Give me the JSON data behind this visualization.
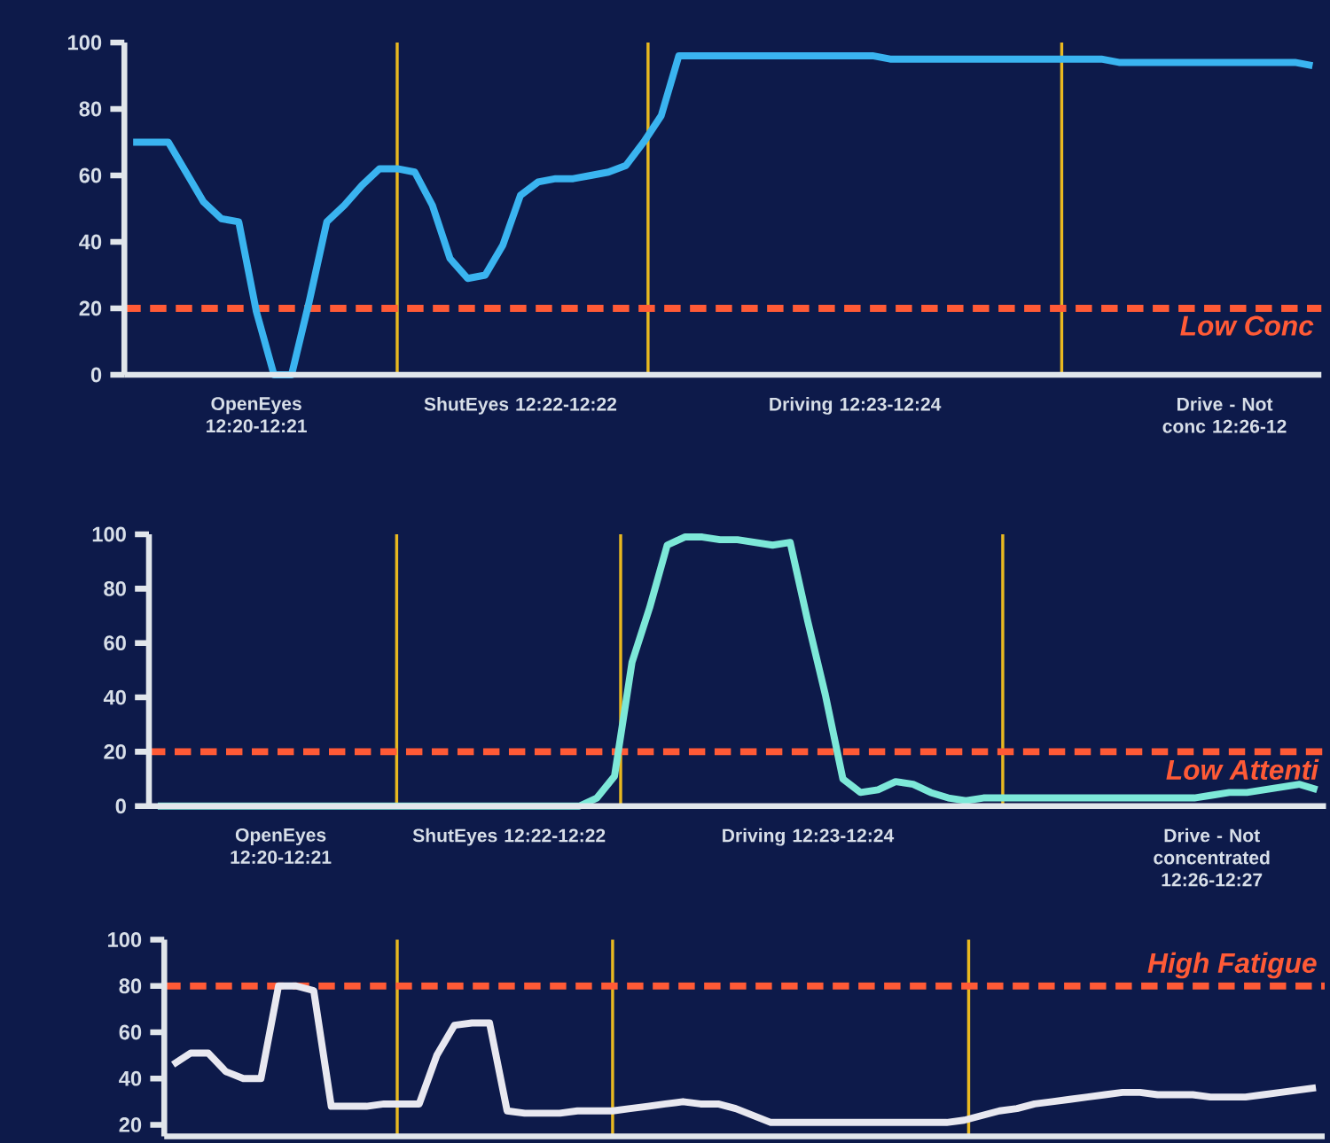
{
  "chart_data": [
    {
      "type": "line",
      "ylim": [
        0,
        100
      ],
      "yticks": [
        0,
        20,
        40,
        60,
        80,
        100
      ],
      "categories": [
        null,
        null,
        null,
        null,
        null,
        null,
        null,
        "OpenEyes 12:20-12:21",
        null,
        null,
        null,
        null,
        null,
        null,
        null,
        null,
        null,
        null,
        null,
        null,
        null,
        null,
        "ShutEyes 12:22-12:22",
        null,
        null,
        null,
        null,
        null,
        null,
        null,
        null,
        null,
        null,
        null,
        null,
        null,
        null,
        null,
        null,
        null,
        null,
        "Driving 12:23-12:24",
        null,
        null,
        null,
        null,
        null,
        null,
        null,
        null,
        null,
        null,
        null,
        null,
        null,
        null,
        null,
        null,
        null,
        null,
        null,
        null,
        "Drive - Not conc 12:26-12",
        null,
        null,
        null,
        null,
        null
      ],
      "ref_lines": [
        {
          "axis": "y",
          "value": 20,
          "label": "Low Conc",
          "color": "#ff5a36",
          "line_style": "dashed"
        }
      ],
      "line_style": "solid",
      "series": [
        {
          "color": "#3ab4f0",
          "values": [
            70,
            70,
            70,
            61,
            52,
            47,
            46,
            19,
            0,
            0,
            22,
            46,
            51,
            57,
            62,
            62,
            61,
            51,
            35,
            29,
            30,
            39,
            54,
            58,
            59,
            59,
            60,
            61,
            63,
            70,
            78,
            96,
            96,
            96,
            96,
            96,
            96,
            96,
            96,
            96,
            96,
            96,
            96,
            95,
            95,
            95,
            95,
            95,
            95,
            95,
            95,
            95,
            95,
            95,
            95,
            95,
            94,
            94,
            94,
            94,
            94,
            94,
            94,
            94,
            94,
            94,
            94,
            93
          ]
        }
      ]
    },
    {
      "type": "line",
      "ylim": [
        0,
        100
      ],
      "yticks": [
        0,
        20,
        40,
        60,
        80,
        100
      ],
      "categories": [
        null,
        null,
        null,
        null,
        null,
        null,
        null,
        "OpenEyes 12:20-12:21",
        null,
        null,
        null,
        null,
        null,
        null,
        null,
        null,
        null,
        null,
        null,
        null,
        "ShutEyes 12:22-12:22",
        null,
        null,
        null,
        null,
        null,
        null,
        null,
        null,
        null,
        null,
        null,
        null,
        null,
        null,
        null,
        null,
        "Driving 12:23-12:24",
        null,
        null,
        null,
        null,
        null,
        null,
        null,
        null,
        null,
        null,
        null,
        null,
        null,
        null,
        null,
        null,
        null,
        null,
        null,
        null,
        null,
        null,
        "Drive - Not concentrated 12:26-12:27",
        null,
        null,
        null,
        null,
        null,
        null
      ],
      "ref_lines": [
        {
          "axis": "y",
          "value": 20,
          "label": "Low Attenti",
          "color": "#ff5a36",
          "line_style": "dashed"
        }
      ],
      "line_style": "solid",
      "series": [
        {
          "color": "#7de8d8",
          "values": [
            0,
            0,
            0,
            0,
            0,
            0,
            0,
            0,
            0,
            0,
            0,
            0,
            0,
            0,
            0,
            0,
            0,
            0,
            0,
            0,
            0,
            0,
            0,
            0,
            0,
            3,
            11,
            53,
            73,
            96,
            99,
            99,
            98,
            98,
            97,
            96,
            97,
            68,
            41,
            10,
            5,
            6,
            9,
            8,
            5,
            3,
            2,
            3,
            3,
            3,
            3,
            3,
            3,
            3,
            3,
            3,
            3,
            3,
            3,
            3,
            4,
            5,
            5,
            6,
            7,
            8,
            6
          ]
        }
      ]
    },
    {
      "type": "line",
      "ylim": [
        15,
        100
      ],
      "yticks": [
        20,
        40,
        60,
        80,
        100
      ],
      "categories": [
        null,
        null,
        null,
        null,
        null,
        null,
        null,
        null,
        null,
        null,
        null,
        null,
        null,
        null,
        null,
        null,
        null,
        null,
        null,
        null,
        null,
        null,
        null,
        null,
        null,
        null,
        null,
        null,
        null,
        null,
        null,
        null,
        null,
        null,
        null,
        null,
        null,
        null,
        null,
        null,
        null,
        null,
        null,
        null,
        null,
        null,
        null,
        null,
        null,
        null,
        null,
        null,
        null,
        null,
        null,
        null,
        null,
        null,
        null,
        null,
        null,
        null,
        null,
        null,
        null,
        null
      ],
      "ref_lines": [
        {
          "axis": "y",
          "value": 80,
          "label": "High Fatigue",
          "color": "#ff5a36",
          "line_style": "dashed"
        }
      ],
      "line_style": "solid",
      "series": [
        {
          "color": "#e8e8f0",
          "values": [
            46,
            51,
            51,
            43,
            40,
            40,
            80,
            80,
            78,
            28,
            28,
            28,
            29,
            29,
            29,
            50,
            63,
            64,
            64,
            26,
            25,
            25,
            25,
            26,
            26,
            26,
            27,
            28,
            29,
            30,
            29,
            29,
            27,
            24,
            21,
            21,
            21,
            21,
            21,
            21,
            21,
            21,
            21,
            21,
            21,
            22,
            24,
            26,
            27,
            29,
            30,
            31,
            32,
            33,
            34,
            34,
            33,
            33,
            33,
            32,
            32,
            32,
            33,
            34,
            35,
            36
          ]
        }
      ]
    }
  ]
}
